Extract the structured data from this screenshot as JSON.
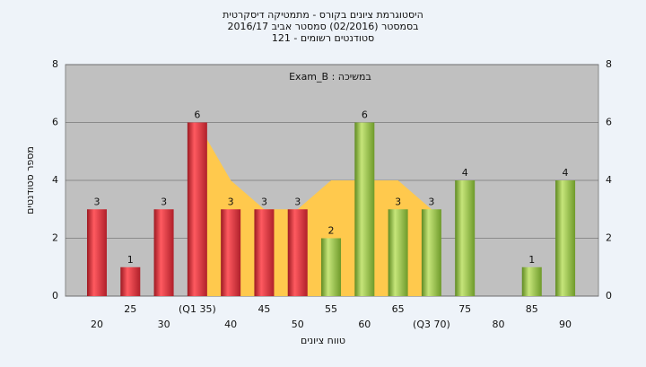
{
  "chart_data": {
    "type": "bar",
    "title": "היסטוגרמת ציונים בקורס - מתמטיקה דיסקרטית",
    "subtitle": "בסמסטר  (02/2016)  סמסטר אביב 2016/17",
    "subtitle2": "סטודנטים רשומים - 121",
    "annotation": "Exam_B : במשיכה",
    "x_label": "טווח ציונים",
    "y_label": "מספר סטודנטים",
    "categories": [
      "20",
      "25",
      "30",
      "(Q1 35)",
      "40",
      "45",
      "50",
      "55",
      "60",
      "65",
      "(Q3 70)",
      "75",
      "80",
      "85",
      "90"
    ],
    "series": [
      {
        "color": "#e8303a",
        "values": [
          3,
          1,
          3,
          6,
          3,
          3,
          3,
          null,
          null,
          null,
          null,
          null,
          null,
          null,
          null
        ]
      },
      {
        "color": "#8fbf3a",
        "values": [
          null,
          null,
          null,
          null,
          null,
          null,
          null,
          2,
          6,
          3,
          3,
          4,
          null,
          1,
          4
        ]
      }
    ],
    "area": {
      "color": "#ffc94d",
      "values": [
        null,
        null,
        null,
        6,
        4,
        3,
        3,
        4,
        4,
        4,
        3,
        null,
        null,
        null,
        null
      ]
    },
    "ylim": [
      0,
      8
    ],
    "yticks": [
      0,
      2,
      4,
      6,
      8
    ],
    "grid": true
  }
}
